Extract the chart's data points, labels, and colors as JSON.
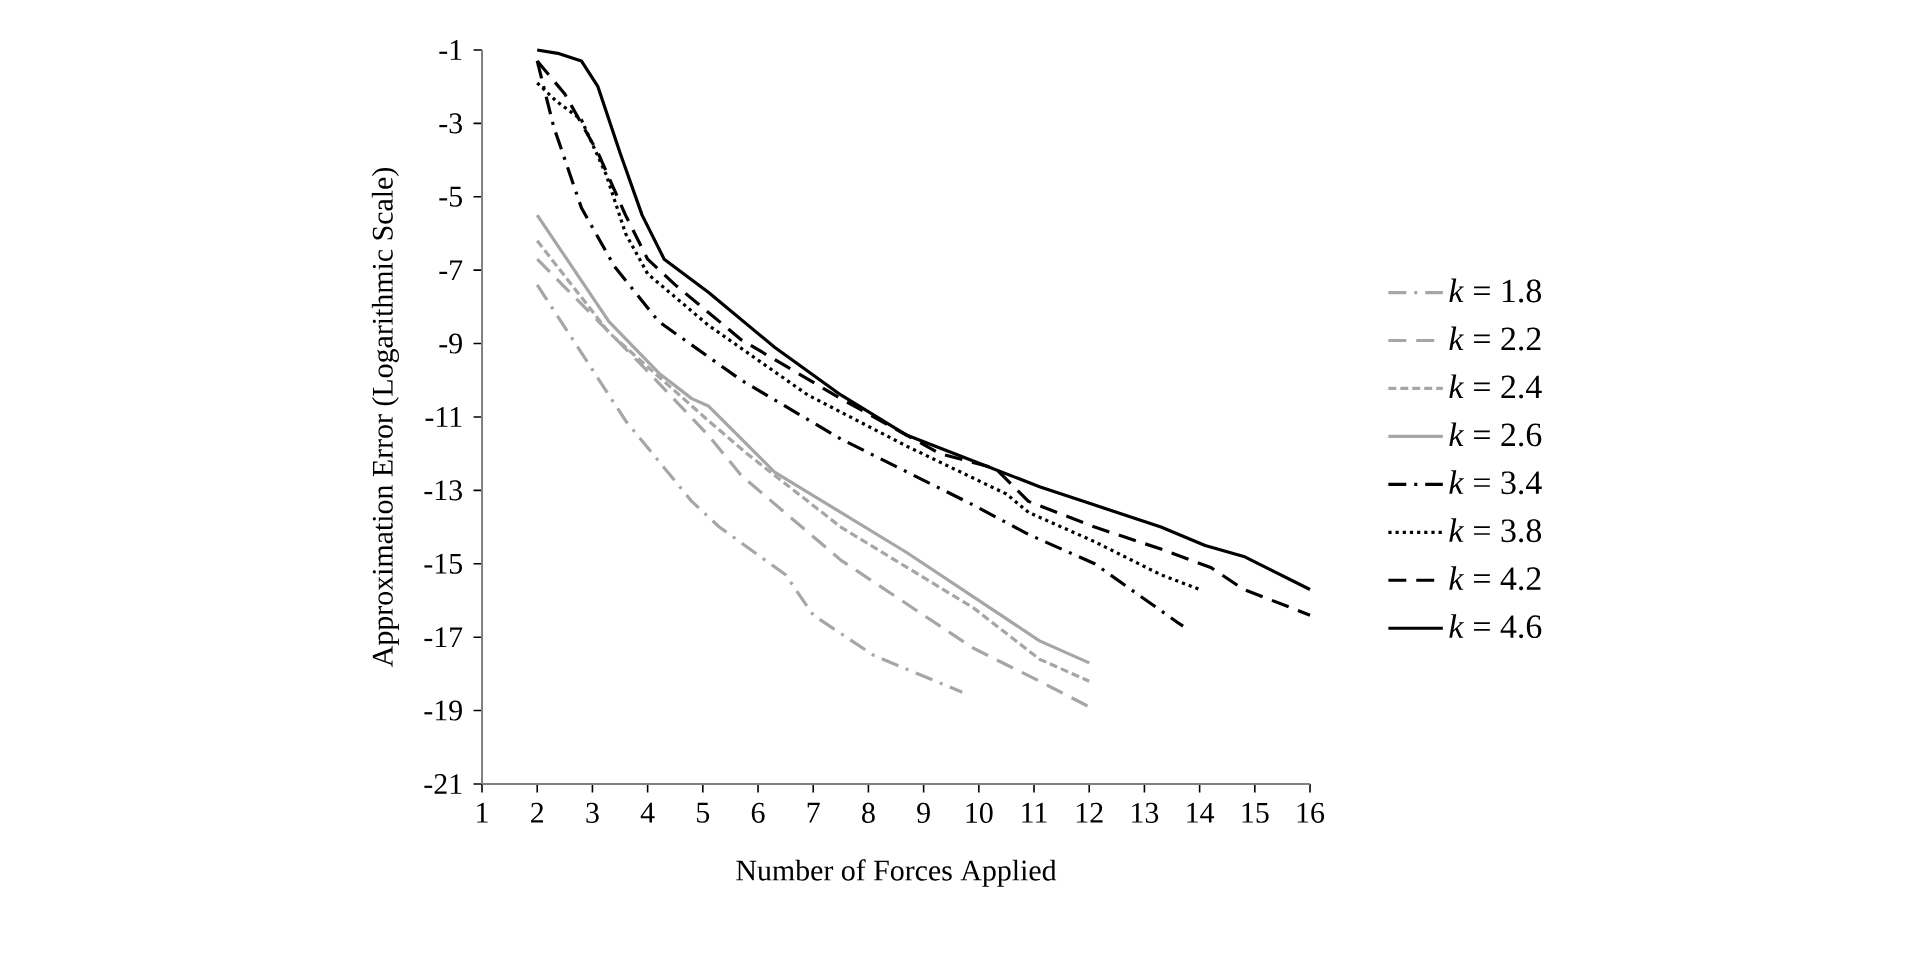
{
  "chart_data": {
    "type": "line",
    "xlabel": "Number of Forces Applied",
    "ylabel": "Approximation Error (Logarithmic Scale)",
    "xlim": [
      1,
      16
    ],
    "xticks": [
      1,
      2,
      3,
      4,
      5,
      6,
      7,
      8,
      9,
      10,
      11,
      12,
      13,
      14,
      15,
      16
    ],
    "ylim": [
      -21,
      -1
    ],
    "yticks": [
      -21,
      -19,
      -17,
      -15,
      -13,
      -11,
      -9,
      -7,
      -5,
      -3,
      -1
    ],
    "legend": "right",
    "grid": false,
    "marker": "none",
    "series": [
      {
        "name": "*k* = 1.8",
        "color": "#a6a6a6",
        "line_style": "dashdot",
        "x": [
          2,
          3.6,
          4.8,
          5.3,
          6.5,
          7,
          8.1,
          9.7
        ],
        "values": [
          -7.4,
          -11.1,
          -13.3,
          -14,
          -15.3,
          -16.4,
          -17.5,
          -18.5
        ]
      },
      {
        "name": "*k* = 2.2",
        "color": "#a6a6a6",
        "line_style": "dashed",
        "x": [
          2,
          3.9,
          5.1,
          5.7,
          7.5,
          9.9,
          11.1,
          12
        ],
        "values": [
          -6.7,
          -9.6,
          -11.5,
          -12.6,
          -14.9,
          -17.3,
          -18.2,
          -18.9
        ]
      },
      {
        "name": "*k* = 2.4",
        "color": "#a6a6a6",
        "line_style": "shortdash",
        "x": [
          2,
          3.3,
          5.1,
          5.8,
          7.5,
          9.9,
          11.1,
          12
        ],
        "values": [
          -6.2,
          -8.7,
          -11.1,
          -12,
          -14,
          -16.2,
          -17.6,
          -18.2
        ]
      },
      {
        "name": "*k* = 2.6",
        "color": "#a6a6a6",
        "line_style": "solid",
        "x": [
          2,
          3.3,
          4.2,
          4.8,
          5.1,
          6.3,
          8.7,
          11.1,
          12
        ],
        "values": [
          -5.5,
          -8.4,
          -9.8,
          -10.5,
          -10.7,
          -12.5,
          -14.7,
          -17.1,
          -17.7
        ]
      },
      {
        "name": "*k* = 3.4",
        "color": "#000000",
        "line_style": "dashdot",
        "x": [
          2,
          2.3,
          2.8,
          3.4,
          4.2,
          5.7,
          7.5,
          9.9,
          10.9,
          12.1,
          13.6,
          13.7
        ],
        "values": [
          -1.3,
          -3.1,
          -5.3,
          -6.9,
          -8.4,
          -10,
          -11.6,
          -13.4,
          -14.2,
          -15,
          -16.6,
          -16.7
        ]
      },
      {
        "name": "*k* = 3.8",
        "color": "#000000",
        "line_style": "dotted",
        "x": [
          2,
          2.35,
          2.8,
          3.25,
          3.6,
          4,
          5.1,
          6.9,
          8.7,
          10.5,
          10.9,
          12.1,
          13.3,
          14
        ],
        "values": [
          -1.9,
          -2.4,
          -2.9,
          -4.4,
          -6,
          -7.1,
          -8.5,
          -10.4,
          -11.8,
          -13.1,
          -13.6,
          -14.4,
          -15.3,
          -15.7
        ]
      },
      {
        "name": "*k* = 4.2",
        "color": "#000000",
        "line_style": "dashed",
        "x": [
          2,
          2.5,
          3.1,
          3.6,
          4,
          4.5,
          5.7,
          7.5,
          9.3,
          10.3,
          10.9,
          12.1,
          13.3,
          14.2,
          14.8,
          16
        ],
        "values": [
          -1.3,
          -2.2,
          -3.8,
          -5.5,
          -6.7,
          -7.4,
          -8.9,
          -10.5,
          -12,
          -12.4,
          -13.3,
          -14,
          -14.6,
          -15.1,
          -15.7,
          -16.4
        ]
      },
      {
        "name": "*k* = 4.6",
        "color": "#000000",
        "line_style": "solid",
        "x": [
          2,
          2.4,
          2.8,
          3.1,
          3.5,
          3.9,
          4.3,
          5.1,
          6.3,
          7.5,
          8.7,
          9.9,
          11.1,
          12.1,
          13.3,
          14.1,
          14.8,
          16
        ],
        "values": [
          -1,
          -1.1,
          -1.3,
          -2,
          -3.8,
          -5.5,
          -6.7,
          -7.6,
          -9.1,
          -10.4,
          -11.5,
          -12.2,
          -12.9,
          -13.4,
          -14,
          -14.5,
          -14.8,
          -15.7
        ]
      }
    ]
  }
}
